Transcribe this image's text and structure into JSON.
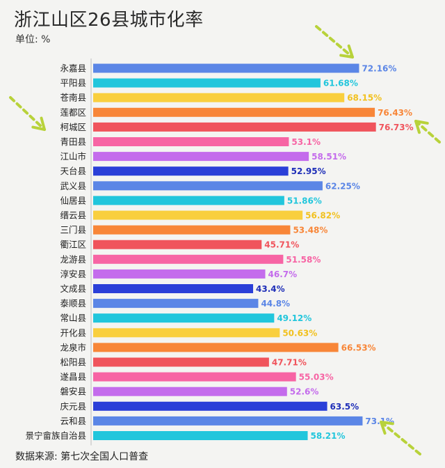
{
  "chart_data": {
    "type": "bar",
    "orientation": "horizontal",
    "title": "浙江山区26县城市化率",
    "unit_label": "单位: %",
    "source": "数据来源: 第七次全国人口普查",
    "xlim": [
      0,
      80
    ],
    "grid": false,
    "legend": "none",
    "categories": [
      "永嘉县",
      "平阳县",
      "苍南县",
      "莲都区",
      "柯城区",
      "青田县",
      "江山市",
      "天台县",
      "武义县",
      "仙居县",
      "缙云县",
      "三门县",
      "衢江区",
      "龙游县",
      "淳安县",
      "文成县",
      "泰顺县",
      "常山县",
      "开化县",
      "龙泉市",
      "松阳县",
      "遂昌县",
      "磐安县",
      "庆元县",
      "云和县",
      "景宁畲族自治县"
    ],
    "values": [
      72.16,
      61.68,
      68.15,
      76.43,
      76.73,
      53.1,
      58.51,
      52.95,
      62.25,
      51.86,
      56.82,
      53.48,
      45.71,
      51.58,
      46.7,
      43.4,
      44.8,
      49.12,
      50.63,
      66.53,
      47.71,
      55.03,
      52.6,
      63.5,
      73.1,
      58.21
    ],
    "value_labels": [
      "72.16%",
      "61.68%",
      "68.15%",
      "76.43%",
      "76.73%",
      "53.1%",
      "58.51%",
      "52.95%",
      "62.25%",
      "51.86%",
      "56.82%",
      "53.48%",
      "45.71%",
      "51.58%",
      "46.7%",
      "43.4%",
      "44.8%",
      "49.12%",
      "50.63%",
      "66.53%",
      "47.71%",
      "55.03%",
      "52.6%",
      "63.5%",
      "73.1%",
      "58.21%"
    ],
    "bar_colors": [
      "#5b86e6",
      "#22c6dc",
      "#f9cf3e",
      "#f88638",
      "#f0545c",
      "#f764a4",
      "#c46cec",
      "#2a3fd8"
    ],
    "label_colors": [
      "#5b86e6",
      "#22c6dc",
      "#f2c11e",
      "#f88638",
      "#f0545c",
      "#f764a4",
      "#c46cec",
      "#1f2fb8"
    ],
    "arrow_color": "#b8d23a"
  }
}
